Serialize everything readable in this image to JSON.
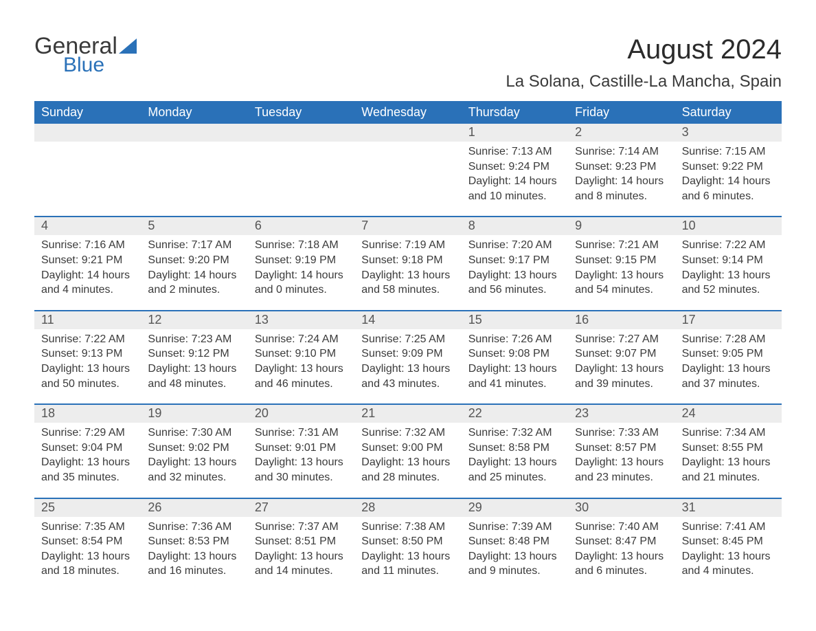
{
  "logo": {
    "word1": "General",
    "word2": "Blue",
    "accent_color": "#2a71b8"
  },
  "title": "August 2024",
  "location": "La Solana, Castille-La Mancha, Spain",
  "colors": {
    "header_bg": "#2a71b8",
    "header_text": "#ffffff",
    "daynum_bg": "#ededed",
    "week_divider": "#2a71b8",
    "body_text": "#3a3a3a",
    "page_bg": "#ffffff"
  },
  "day_names": [
    "Sunday",
    "Monday",
    "Tuesday",
    "Wednesday",
    "Thursday",
    "Friday",
    "Saturday"
  ],
  "weeks": [
    [
      null,
      null,
      null,
      null,
      {
        "n": "1",
        "sr": "7:13 AM",
        "ss": "9:24 PM",
        "dl": "14 hours and 10 minutes."
      },
      {
        "n": "2",
        "sr": "7:14 AM",
        "ss": "9:23 PM",
        "dl": "14 hours and 8 minutes."
      },
      {
        "n": "3",
        "sr": "7:15 AM",
        "ss": "9:22 PM",
        "dl": "14 hours and 6 minutes."
      }
    ],
    [
      {
        "n": "4",
        "sr": "7:16 AM",
        "ss": "9:21 PM",
        "dl": "14 hours and 4 minutes."
      },
      {
        "n": "5",
        "sr": "7:17 AM",
        "ss": "9:20 PM",
        "dl": "14 hours and 2 minutes."
      },
      {
        "n": "6",
        "sr": "7:18 AM",
        "ss": "9:19 PM",
        "dl": "14 hours and 0 minutes."
      },
      {
        "n": "7",
        "sr": "7:19 AM",
        "ss": "9:18 PM",
        "dl": "13 hours and 58 minutes."
      },
      {
        "n": "8",
        "sr": "7:20 AM",
        "ss": "9:17 PM",
        "dl": "13 hours and 56 minutes."
      },
      {
        "n": "9",
        "sr": "7:21 AM",
        "ss": "9:15 PM",
        "dl": "13 hours and 54 minutes."
      },
      {
        "n": "10",
        "sr": "7:22 AM",
        "ss": "9:14 PM",
        "dl": "13 hours and 52 minutes."
      }
    ],
    [
      {
        "n": "11",
        "sr": "7:22 AM",
        "ss": "9:13 PM",
        "dl": "13 hours and 50 minutes."
      },
      {
        "n": "12",
        "sr": "7:23 AM",
        "ss": "9:12 PM",
        "dl": "13 hours and 48 minutes."
      },
      {
        "n": "13",
        "sr": "7:24 AM",
        "ss": "9:10 PM",
        "dl": "13 hours and 46 minutes."
      },
      {
        "n": "14",
        "sr": "7:25 AM",
        "ss": "9:09 PM",
        "dl": "13 hours and 43 minutes."
      },
      {
        "n": "15",
        "sr": "7:26 AM",
        "ss": "9:08 PM",
        "dl": "13 hours and 41 minutes."
      },
      {
        "n": "16",
        "sr": "7:27 AM",
        "ss": "9:07 PM",
        "dl": "13 hours and 39 minutes."
      },
      {
        "n": "17",
        "sr": "7:28 AM",
        "ss": "9:05 PM",
        "dl": "13 hours and 37 minutes."
      }
    ],
    [
      {
        "n": "18",
        "sr": "7:29 AM",
        "ss": "9:04 PM",
        "dl": "13 hours and 35 minutes."
      },
      {
        "n": "19",
        "sr": "7:30 AM",
        "ss": "9:02 PM",
        "dl": "13 hours and 32 minutes."
      },
      {
        "n": "20",
        "sr": "7:31 AM",
        "ss": "9:01 PM",
        "dl": "13 hours and 30 minutes."
      },
      {
        "n": "21",
        "sr": "7:32 AM",
        "ss": "9:00 PM",
        "dl": "13 hours and 28 minutes."
      },
      {
        "n": "22",
        "sr": "7:32 AM",
        "ss": "8:58 PM",
        "dl": "13 hours and 25 minutes."
      },
      {
        "n": "23",
        "sr": "7:33 AM",
        "ss": "8:57 PM",
        "dl": "13 hours and 23 minutes."
      },
      {
        "n": "24",
        "sr": "7:34 AM",
        "ss": "8:55 PM",
        "dl": "13 hours and 21 minutes."
      }
    ],
    [
      {
        "n": "25",
        "sr": "7:35 AM",
        "ss": "8:54 PM",
        "dl": "13 hours and 18 minutes."
      },
      {
        "n": "26",
        "sr": "7:36 AM",
        "ss": "8:53 PM",
        "dl": "13 hours and 16 minutes."
      },
      {
        "n": "27",
        "sr": "7:37 AM",
        "ss": "8:51 PM",
        "dl": "13 hours and 14 minutes."
      },
      {
        "n": "28",
        "sr": "7:38 AM",
        "ss": "8:50 PM",
        "dl": "13 hours and 11 minutes."
      },
      {
        "n": "29",
        "sr": "7:39 AM",
        "ss": "8:48 PM",
        "dl": "13 hours and 9 minutes."
      },
      {
        "n": "30",
        "sr": "7:40 AM",
        "ss": "8:47 PM",
        "dl": "13 hours and 6 minutes."
      },
      {
        "n": "31",
        "sr": "7:41 AM",
        "ss": "8:45 PM",
        "dl": "13 hours and 4 minutes."
      }
    ]
  ],
  "labels": {
    "sunrise": "Sunrise:",
    "sunset": "Sunset:",
    "daylight": "Daylight:"
  }
}
